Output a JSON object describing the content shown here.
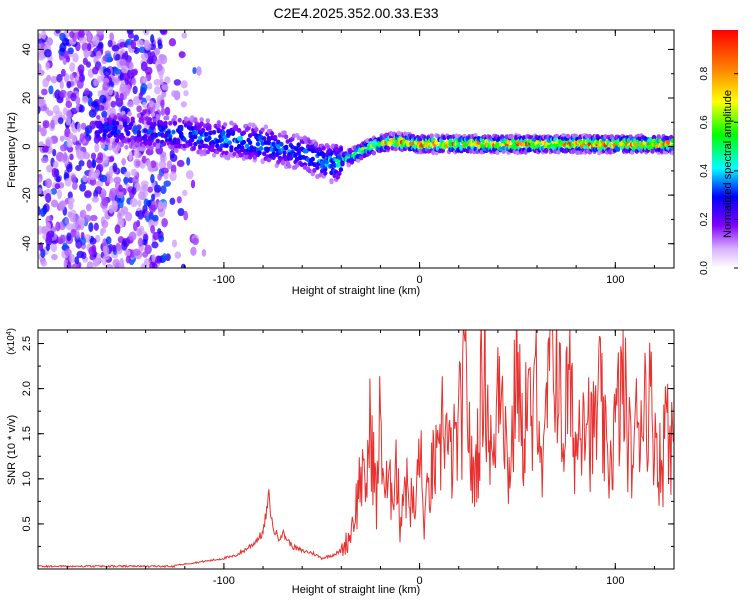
{
  "figure_title": "C2E4.2025.352.00.33.E33",
  "chart_data": [
    {
      "type": "heatmap",
      "title": "C2E4.2025.352.00.33.E33",
      "xlabel": "Height of straight line (km)",
      "ylabel": "Frequency (Hz)",
      "xlim": [
        -195,
        130
      ],
      "ylim": [
        -50,
        48
      ],
      "x_ticks": [
        -100,
        0,
        100
      ],
      "x_tick_labels": [
        "-100",
        "0",
        "100"
      ],
      "y_ticks": [
        -40,
        -20,
        0,
        20,
        40
      ],
      "y_tick_labels": [
        "-40",
        "-20",
        "0",
        "20",
        "40"
      ],
      "colorbar": {
        "label": "Normalized spectral amplitude",
        "range": [
          0,
          0.98
        ],
        "ticks": [
          0.0,
          0.2,
          0.4,
          0.6,
          0.8
        ],
        "tick_labels": [
          "0.0",
          "0.2",
          "0.4",
          "0.6",
          "0.8"
        ],
        "colormap": [
          "#ffffff",
          "#7f00ff",
          "#0000ff",
          "#00ffff",
          "#00ff00",
          "#ffff00",
          "#ff7f00",
          "#ff0000"
        ]
      },
      "ridge": {
        "x": [
          -160,
          -140,
          -120,
          -100,
          -90,
          -80,
          -70,
          -60,
          -55,
          -50,
          -45,
          -40,
          -35,
          -30,
          -25,
          -20,
          -15,
          -10,
          0,
          20,
          40,
          60,
          80,
          100,
          130
        ],
        "frequency_hz": [
          7,
          6,
          5,
          3,
          2,
          1,
          -1,
          -3,
          -4,
          -6,
          -7,
          -6,
          -4,
          -2,
          0,
          1,
          2,
          2,
          1,
          1,
          1,
          1,
          1,
          1,
          1
        ],
        "amplitude": [
          0.3,
          0.35,
          0.35,
          0.4,
          0.4,
          0.4,
          0.35,
          0.35,
          0.4,
          0.4,
          0.45,
          0.5,
          0.55,
          0.6,
          0.7,
          0.8,
          0.85,
          0.9,
          0.9,
          0.9,
          0.9,
          0.9,
          0.9,
          0.9,
          0.9
        ]
      },
      "noise_region_x": [
        -195,
        -130
      ]
    },
    {
      "type": "line",
      "xlabel": "Height of straight line (km)",
      "ylabel": "SNR (10 * v/v)",
      "y_scale_label": "(x10",
      "y_scale_exponent": "4",
      "y_scale_suffix": ")",
      "xlim": [
        -195,
        130
      ],
      "ylim": [
        0,
        2.65
      ],
      "x_ticks": [
        -100,
        0,
        100
      ],
      "x_tick_labels": [
        "-100",
        "0",
        "100"
      ],
      "y_ticks": [
        0.5,
        1.0,
        1.5,
        2.0,
        2.5
      ],
      "y_tick_labels": [
        "0.5",
        "1.0",
        "1.5",
        "2.0",
        "2.5"
      ],
      "color": "#e8312f",
      "series": [
        {
          "name": "SNR",
          "x": [
            -195,
            -180,
            -160,
            -140,
            -125,
            -115,
            -105,
            -95,
            -90,
            -85,
            -80,
            -77,
            -75,
            -72,
            -70,
            -65,
            -60,
            -55,
            -50,
            -45,
            -40,
            -36,
            -34,
            -32,
            -30,
            -28,
            -25,
            -22,
            -20,
            -18,
            -15,
            -12,
            -10,
            -8,
            -5,
            -2,
            0,
            2,
            5,
            8,
            10,
            12,
            15,
            18,
            20,
            24,
            27,
            30,
            33,
            36,
            38,
            40,
            42,
            45,
            48,
            50,
            52,
            55,
            58,
            60,
            63,
            66,
            70,
            73,
            76,
            80,
            84,
            88,
            92,
            96,
            100,
            104,
            108,
            112,
            116,
            120,
            122,
            124,
            126,
            128,
            130
          ],
          "values": [
            0.03,
            0.03,
            0.03,
            0.03,
            0.04,
            0.07,
            0.1,
            0.14,
            0.2,
            0.28,
            0.4,
            0.8,
            0.45,
            0.35,
            0.4,
            0.25,
            0.2,
            0.18,
            0.12,
            0.15,
            0.2,
            0.35,
            0.55,
            0.75,
            1.1,
            0.8,
            1.6,
            0.7,
            1.75,
            0.9,
            0.85,
            1.2,
            0.5,
            1.0,
            0.8,
            0.6,
            1.5,
            0.5,
            0.9,
            1.2,
            1.0,
            1.85,
            1.2,
            1.3,
            1.55,
            2.1,
            0.9,
            1.4,
            2.45,
            1.4,
            1.1,
            2.2,
            2.45,
            1.0,
            1.6,
            2.65,
            1.3,
            1.95,
            1.4,
            2.4,
            0.9,
            2.2,
            2.45,
            1.4,
            2.05,
            1.3,
            2.1,
            1.4,
            1.9,
            1.1,
            1.55,
            2.05,
            1.2,
            1.7,
            2.0,
            1.6,
            1.3,
            1.0,
            2.0,
            1.5,
            1.4
          ]
        }
      ]
    }
  ]
}
